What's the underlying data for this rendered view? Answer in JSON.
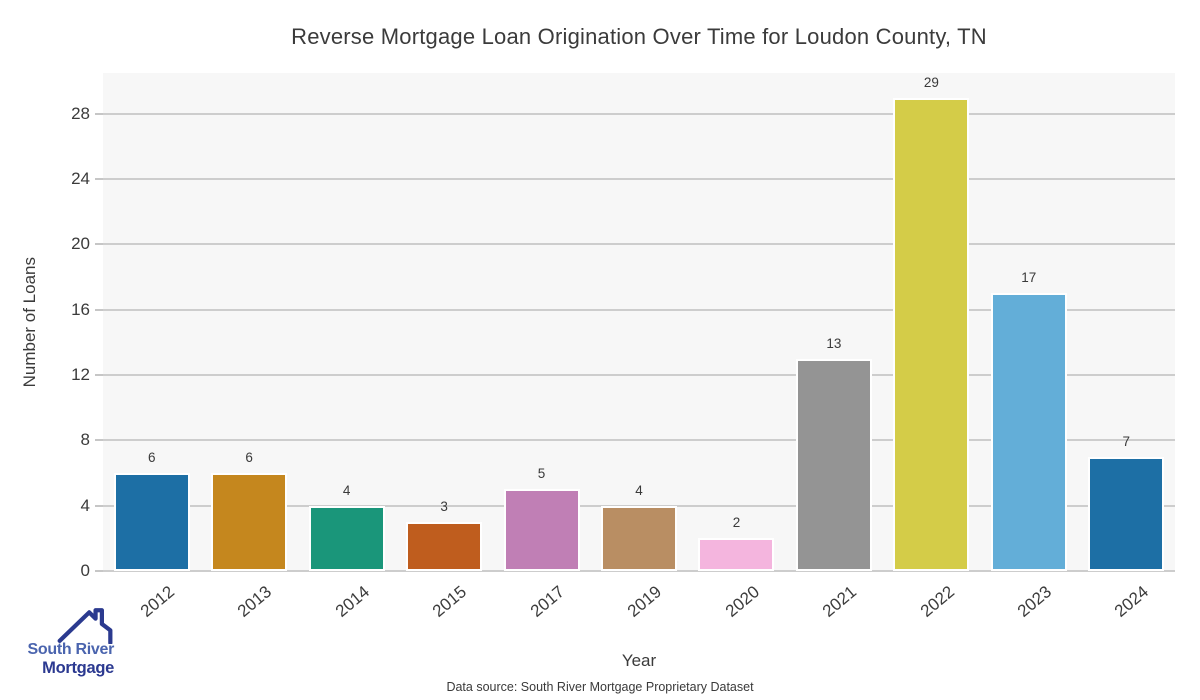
{
  "title": "Reverse Mortgage Loan Origination Over Time for Loudon County, TN",
  "footer": {
    "source_text": "Data source: South River Mortgage Proprietary Dataset"
  },
  "logo": {
    "line1": "South River",
    "line2": "Mortgage",
    "icon": "house-roof-icon",
    "line1_color": "#4a64ae",
    "line2_color": "#2b3990",
    "icon_color": "#2b3a8f"
  },
  "chart_data": {
    "type": "bar",
    "title": "Reverse Mortgage Loan Origination Over Time for Loudon County, TN",
    "xlabel": "Year",
    "ylabel": "Number of Loans",
    "categories": [
      "2012",
      "2013",
      "2014",
      "2015",
      "2017",
      "2019",
      "2020",
      "2021",
      "2022",
      "2023",
      "2024"
    ],
    "values": [
      6,
      6,
      4,
      3,
      5,
      4,
      2,
      13,
      29,
      17,
      7
    ],
    "bar_colors": [
      "#1d6fa5",
      "#c5871e",
      "#1a967a",
      "#bf5d1e",
      "#c07fb5",
      "#b98e63",
      "#f4b5de",
      "#949494",
      "#d4cc48",
      "#63aed8",
      "#1d6fa5"
    ],
    "yticks": [
      0,
      4,
      8,
      12,
      16,
      20,
      24,
      28
    ],
    "ylim": [
      0,
      30.5
    ],
    "grid": true,
    "legend": "none",
    "plot_bg_color": "#f7f7f7",
    "grid_color": "#cdcdcd",
    "text_color": "#3b3b3b",
    "value_labels_shown": true
  }
}
